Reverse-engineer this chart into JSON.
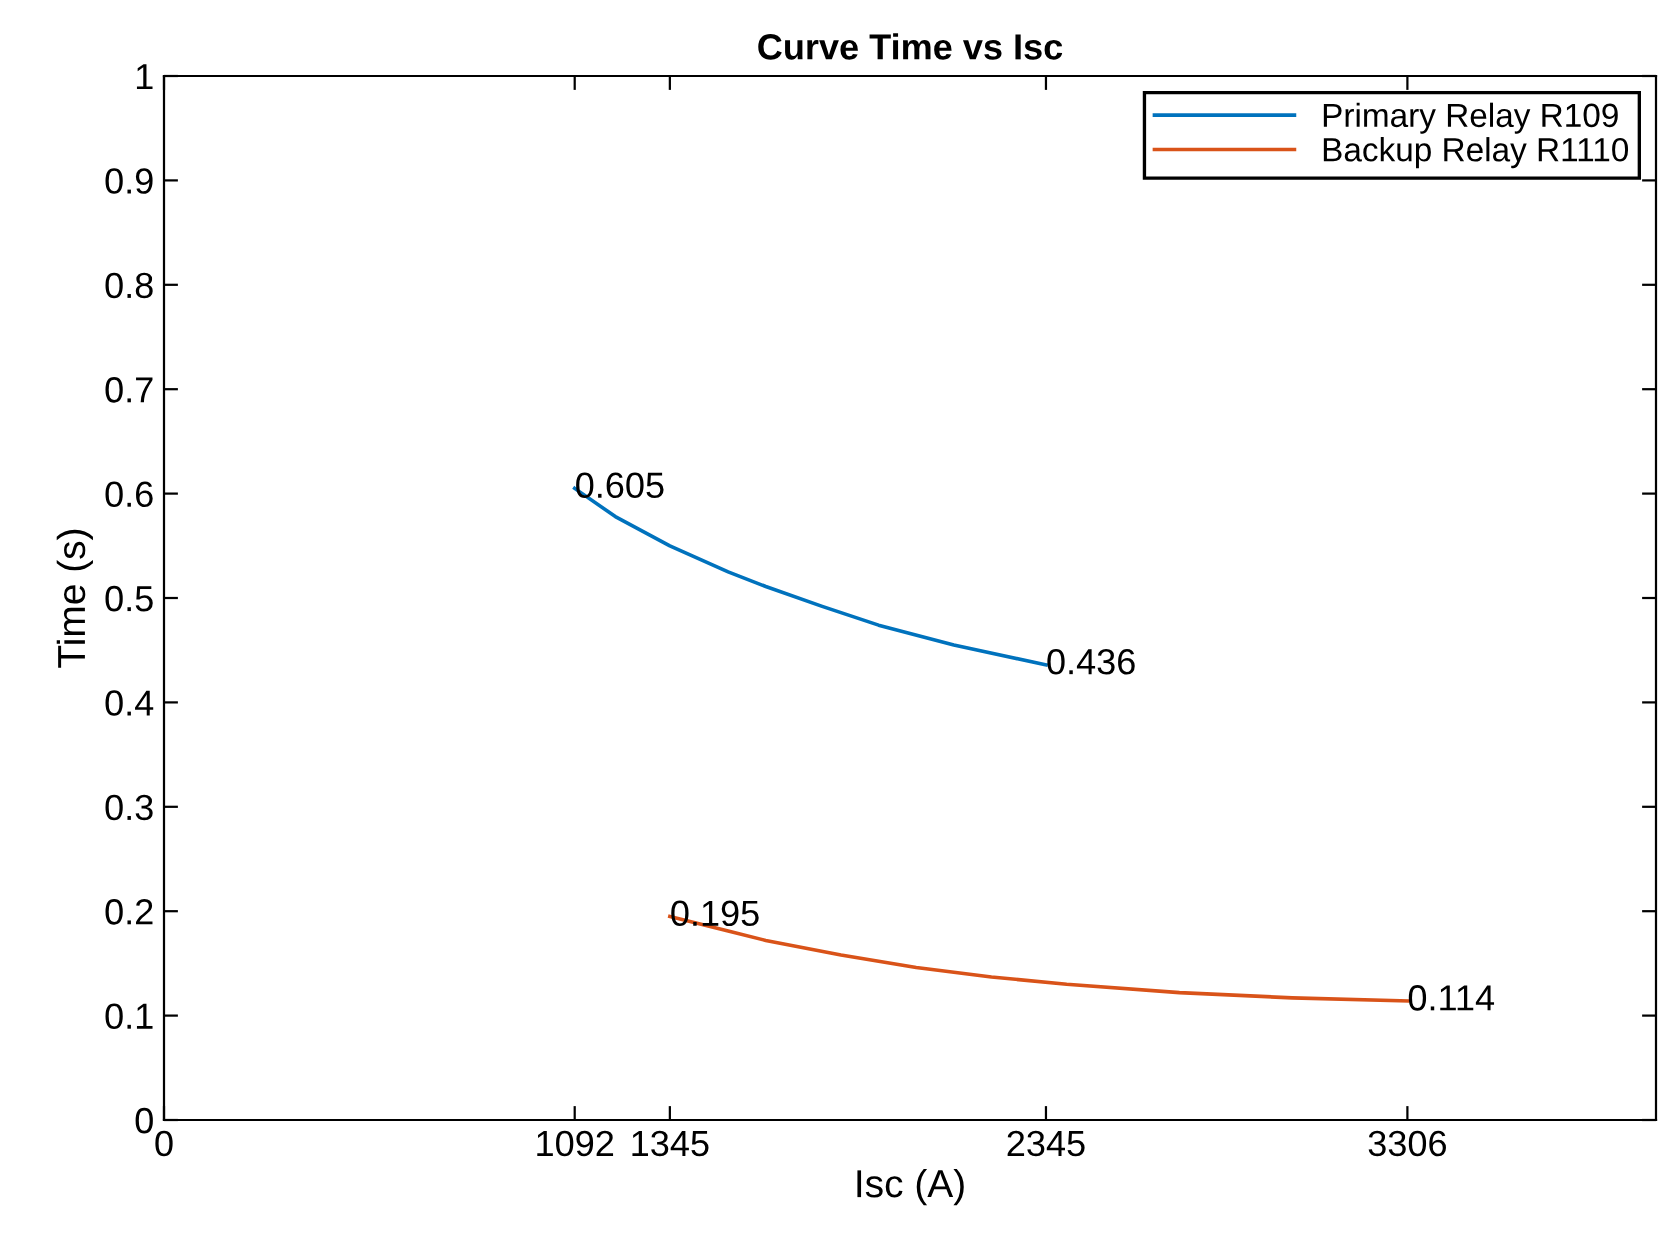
{
  "chart_data": {
    "type": "line",
    "title": "Curve Time vs Isc",
    "xlabel": "Isc (A)",
    "ylabel": "Time (s)",
    "series": [
      {
        "name": "Primary Relay R109",
        "color": "#0072bd",
        "x": [
          1092,
          1200,
          1345,
          1500,
          1600,
          1750,
          1900,
          2100,
          2345
        ],
        "values": [
          0.605,
          0.578,
          0.55,
          0.525,
          0.511,
          0.492,
          0.474,
          0.455,
          0.436
        ]
      },
      {
        "name": "Backup Relay R1110",
        "color": "#d95319",
        "x": [
          1345,
          1500,
          1600,
          1800,
          2000,
          2200,
          2400,
          2700,
          3000,
          3306
        ],
        "values": [
          0.195,
          0.181,
          0.172,
          0.158,
          0.146,
          0.137,
          0.13,
          0.122,
          0.117,
          0.114
        ]
      }
    ],
    "annotations": [
      {
        "text": "0.605",
        "x": 1092,
        "y": 0.605
      },
      {
        "text": "0.436",
        "x": 2345,
        "y": 0.436
      },
      {
        "text": "0.195",
        "x": 1345,
        "y": 0.195
      },
      {
        "text": "0.114",
        "x": 3306,
        "y": 0.114
      }
    ],
    "xlim": [
      0,
      3967
    ],
    "xticks": [
      0,
      1092,
      1345,
      2345,
      3306
    ],
    "ylim": [
      0,
      1
    ],
    "yticks": [
      0,
      0.1,
      0.2,
      0.3,
      0.4,
      0.5,
      0.6,
      0.7,
      0.8,
      0.9,
      1
    ],
    "legend": "top right",
    "grid": false,
    "marker": "none",
    "line_style": "solid"
  }
}
